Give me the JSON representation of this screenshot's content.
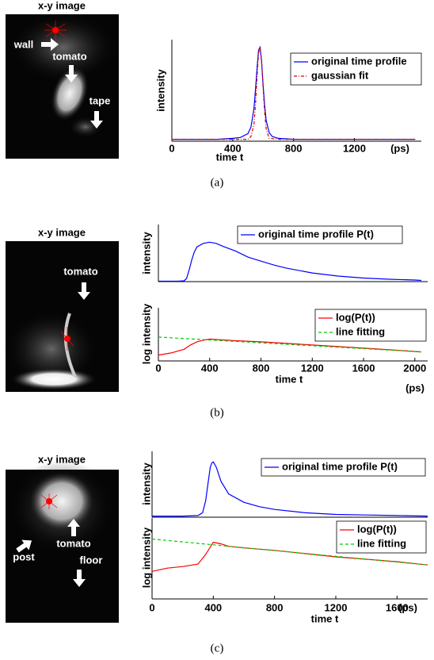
{
  "images": [
    {
      "title": "x-y image",
      "labels": [
        "wall",
        "tomato",
        "tape"
      ]
    },
    {
      "title": "x-y image",
      "labels": [
        "tomato"
      ]
    },
    {
      "title": "x-y image",
      "labels": [
        "tomato",
        "post",
        "floor"
      ]
    }
  ],
  "captions": [
    "(a)",
    "(b)",
    "(c)"
  ],
  "chart_data": [
    {
      "type": "line",
      "ylabel": "intensity",
      "xlabel": "time t",
      "x_unit": "(ps)",
      "legend": "upper right",
      "xlim": [
        0,
        1640
      ],
      "ylim": [
        0,
        1.08
      ],
      "xticks": [
        0,
        400,
        800,
        1200
      ],
      "series": [
        {
          "name": "original time profile",
          "color": "#0000ff",
          "dash": "none",
          "x": [
            0,
            100,
            200,
            300,
            400,
            450,
            500,
            520,
            540,
            550,
            560,
            570,
            580,
            590,
            600,
            610,
            620,
            640,
            660,
            700,
            800,
            1000,
            1200,
            1400,
            1600
          ],
          "values": [
            0.02,
            0.02,
            0.02,
            0.02,
            0.03,
            0.04,
            0.08,
            0.15,
            0.35,
            0.55,
            0.78,
            0.97,
            1.0,
            0.85,
            0.6,
            0.38,
            0.22,
            0.09,
            0.05,
            0.03,
            0.02,
            0.02,
            0.02,
            0.02,
            0.02
          ]
        },
        {
          "name": "gaussian fit",
          "color": "#d00000",
          "dash": "4 2 1 2",
          "x": [
            0,
            200,
            400,
            500,
            520,
            540,
            550,
            560,
            570,
            580,
            590,
            600,
            610,
            620,
            640,
            700,
            900,
            1200,
            1600
          ],
          "values": [
            0.02,
            0.02,
            0.02,
            0.02,
            0.05,
            0.18,
            0.39,
            0.69,
            0.94,
            1.0,
            0.85,
            0.57,
            0.3,
            0.13,
            0.03,
            0.02,
            0.02,
            0.02,
            0.02
          ]
        }
      ]
    },
    {
      "type": "line",
      "ylabel": "intensity",
      "legend": "upper right",
      "xlim": [
        0,
        2100
      ],
      "ylim": [
        0,
        1.45
      ],
      "series": [
        {
          "name": "original time profile P(t)",
          "color": "#0000ff",
          "dash": "none",
          "x": [
            0,
            100,
            150,
            200,
            220,
            240,
            260,
            280,
            300,
            350,
            400,
            450,
            500,
            600,
            700,
            800,
            900,
            1000,
            1200,
            1400,
            1600,
            1800,
            2000,
            2050
          ],
          "values": [
            0.01,
            0.01,
            0.01,
            0.02,
            0.08,
            0.3,
            0.55,
            0.75,
            0.88,
            0.97,
            1.0,
            0.97,
            0.9,
            0.78,
            0.62,
            0.52,
            0.42,
            0.34,
            0.22,
            0.14,
            0.09,
            0.06,
            0.04,
            0.03
          ]
        }
      ]
    },
    {
      "type": "line",
      "ylabel": "log intensity",
      "xlabel": "time t",
      "x_unit": "(ps)",
      "legend": "upper right",
      "xlim": [
        0,
        2100
      ],
      "ylim": [
        0,
        1
      ],
      "xticks": [
        0,
        400,
        800,
        1200,
        1600,
        2000
      ],
      "series": [
        {
          "name": "log(P(t))",
          "color": "#ff0000",
          "dash": "none",
          "x": [
            0,
            100,
            200,
            250,
            300,
            350,
            400,
            600,
            800,
            1000,
            1200,
            1400,
            1600,
            1800,
            2050
          ],
          "values": [
            0.11,
            0.15,
            0.22,
            0.3,
            0.36,
            0.39,
            0.41,
            0.38,
            0.36,
            0.33,
            0.3,
            0.27,
            0.24,
            0.21,
            0.17
          ]
        },
        {
          "name": "line fitting",
          "color": "#00cc00",
          "dash": "4 3",
          "x": [
            0,
            2050
          ],
          "values": [
            0.45,
            0.17
          ]
        }
      ]
    },
    {
      "type": "line",
      "ylabel": "intensity",
      "legend": "upper right",
      "xlim": [
        0,
        1800
      ],
      "ylim": [
        0,
        1.19
      ],
      "series": [
        {
          "name": "original time profile P(t)",
          "color": "#0000ff",
          "dash": "none",
          "x": [
            0,
            100,
            200,
            300,
            330,
            350,
            370,
            380,
            390,
            400,
            420,
            450,
            500,
            600,
            700,
            800,
            1000,
            1200,
            1400,
            1600,
            1800
          ],
          "values": [
            0.02,
            0.02,
            0.02,
            0.03,
            0.08,
            0.3,
            0.7,
            0.9,
            0.98,
            1.0,
            0.9,
            0.65,
            0.42,
            0.27,
            0.19,
            0.14,
            0.08,
            0.05,
            0.04,
            0.03,
            0.02
          ]
        }
      ]
    },
    {
      "type": "line",
      "ylabel": "log intensity",
      "xlabel": "time t",
      "x_unit": "(ps)",
      "legend": "upper right",
      "xlim": [
        0,
        1800
      ],
      "ylim": [
        0,
        1
      ],
      "xticks": [
        0,
        400,
        800,
        1200,
        1600
      ],
      "series": [
        {
          "name": "log(P(t))",
          "color": "#ff0000",
          "dash": "none",
          "x": [
            0,
            100,
            200,
            300,
            350,
            400,
            450,
            500,
            600,
            800,
            1000,
            1200,
            1400,
            1600,
            1800
          ],
          "values": [
            0.34,
            0.38,
            0.4,
            0.43,
            0.55,
            0.7,
            0.68,
            0.65,
            0.63,
            0.6,
            0.56,
            0.52,
            0.49,
            0.46,
            0.42
          ]
        },
        {
          "name": "line fitting",
          "color": "#00cc00",
          "dash": "4 3",
          "x": [
            0,
            1800
          ],
          "values": [
            0.74,
            0.42
          ]
        }
      ]
    }
  ]
}
